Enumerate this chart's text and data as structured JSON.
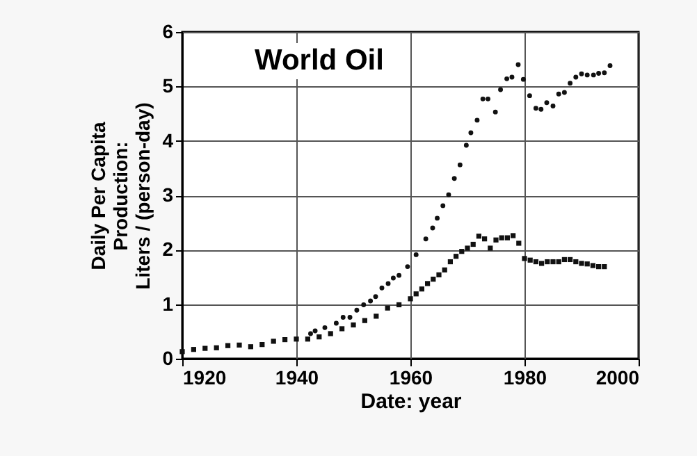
{
  "chart_data": {
    "type": "scatter",
    "title": "World Oil",
    "xlabel": "Date: year",
    "ylabel": "Daily Per Capita\nProduction:\nLiters / (person-day)",
    "xlim": [
      1920,
      2000
    ],
    "xticks": [
      1920,
      1940,
      1960,
      1980,
      2000
    ],
    "ylim": [
      0,
      6
    ],
    "yticks": [
      0,
      1,
      2,
      3,
      4,
      5,
      6
    ],
    "grid": true,
    "series": [
      {
        "color": "#111111",
        "marker": "circle",
        "x": [
          1942.5,
          1943.3,
          1945,
          1947,
          1948.2,
          1949.4,
          1950.6,
          1951.8,
          1953,
          1953.9,
          1955,
          1956.1,
          1957,
          1958,
          1959.5,
          1961,
          1962.7,
          1963.9,
          1964.7,
          1965.7,
          1966.7,
          1967.7,
          1968.7,
          1969.8,
          1970.6,
          1971.7,
          1972.7,
          1973.6,
          1974.9,
          1975.8,
          1976.9,
          1977.8,
          1978.9,
          1979.8,
          1980.9,
          1982,
          1982.9,
          1983.9,
          1985,
          1986,
          1987,
          1988,
          1989,
          1990,
          1991,
          1992.1,
          1993,
          1994,
          1995
        ],
        "values": [
          0.46,
          0.51,
          0.57,
          0.65,
          0.76,
          0.76,
          0.89,
          0.99,
          1.06,
          1.14,
          1.3,
          1.38,
          1.48,
          1.53,
          1.69,
          1.91,
          2.2,
          2.4,
          2.58,
          2.81,
          3.01,
          3.31,
          3.56,
          3.92,
          4.15,
          4.38,
          4.77,
          4.77,
          4.53,
          4.94,
          5.14,
          5.17,
          5.4,
          5.13,
          4.83,
          4.6,
          4.58,
          4.7,
          4.64,
          4.86,
          4.89,
          5.06,
          5.17,
          5.23,
          5.21,
          5.21,
          5.24,
          5.25,
          5.38
        ]
      },
      {
        "color": "#111111",
        "marker": "square",
        "x": [
          1920,
          1922,
          1924,
          1926,
          1928,
          1930,
          1932,
          1934,
          1936,
          1938,
          1940,
          1942,
          1944,
          1946,
          1948,
          1950,
          1952,
          1954,
          1956,
          1958,
          1960,
          1961,
          1962,
          1963,
          1964,
          1965,
          1966,
          1967,
          1968,
          1969,
          1970,
          1971,
          1972,
          1973,
          1974,
          1975,
          1976,
          1977,
          1978,
          1979,
          1980,
          1981,
          1982,
          1983,
          1984,
          1985,
          1986,
          1987,
          1988,
          1989,
          1990,
          1991,
          1992,
          1993,
          1994
        ],
        "values": [
          0.13,
          0.17,
          0.19,
          0.2,
          0.24,
          0.25,
          0.22,
          0.26,
          0.32,
          0.35,
          0.36,
          0.36,
          0.4,
          0.46,
          0.55,
          0.62,
          0.7,
          0.78,
          0.93,
          0.99,
          1.1,
          1.19,
          1.28,
          1.38,
          1.46,
          1.54,
          1.63,
          1.78,
          1.88,
          1.97,
          2.03,
          2.1,
          2.25,
          2.2,
          2.03,
          2.18,
          2.22,
          2.22,
          2.26,
          2.12,
          1.84,
          1.81,
          1.78,
          1.75,
          1.78,
          1.78,
          1.78,
          1.82,
          1.82,
          1.78,
          1.75,
          1.74,
          1.71,
          1.69,
          1.69
        ]
      }
    ]
  }
}
